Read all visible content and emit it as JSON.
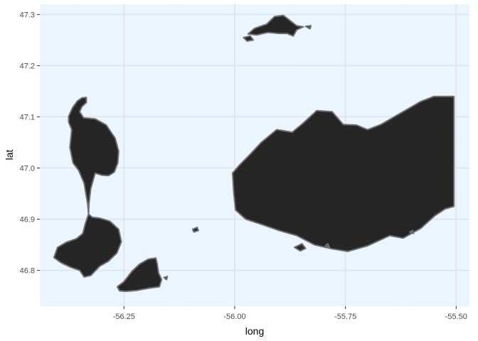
{
  "chart_data": {
    "type": "map",
    "xlabel": "long",
    "ylabel": "lat",
    "xlim": [
      -56.44,
      -55.47
    ],
    "ylim": [
      46.73,
      47.32
    ],
    "x_ticks": [
      {
        "value": -56.25,
        "label": "-56.25"
      },
      {
        "value": -56.0,
        "label": "-56.00"
      },
      {
        "value": -55.75,
        "label": "-55.75"
      },
      {
        "value": -55.5,
        "label": "-55.50"
      }
    ],
    "y_ticks": [
      {
        "value": 46.8,
        "label": "46.8"
      },
      {
        "value": 46.9,
        "label": "46.9"
      },
      {
        "value": 47.0,
        "label": "47.0"
      },
      {
        "value": 47.1,
        "label": "47.1"
      },
      {
        "value": 47.2,
        "label": "47.2"
      },
      {
        "value": 47.3,
        "label": "47.3"
      }
    ],
    "grid": true,
    "colors": {
      "panel_background": "#ebf5ff",
      "land_fill": "#262626",
      "land_outline": "#6e6e6e"
    },
    "landmasses": [
      {
        "id": "northwest-island",
        "points": [
          [
            -56.375,
            47.101
          ],
          [
            -56.366,
            47.118
          ],
          [
            -56.355,
            47.131
          ],
          [
            -56.345,
            47.137
          ],
          [
            -56.335,
            47.138
          ],
          [
            -56.335,
            47.128
          ],
          [
            -56.345,
            47.12
          ],
          [
            -56.35,
            47.11
          ],
          [
            -56.341,
            47.098
          ],
          [
            -56.315,
            47.096
          ],
          [
            -56.29,
            47.084
          ],
          [
            -56.27,
            47.058
          ],
          [
            -56.262,
            47.033
          ],
          [
            -56.264,
            47.01
          ],
          [
            -56.272,
            46.992
          ],
          [
            -56.285,
            46.985
          ],
          [
            -56.3,
            46.986
          ],
          [
            -56.315,
            46.99
          ],
          [
            -56.325,
            46.96
          ],
          [
            -56.329,
            46.93
          ],
          [
            -56.33,
            46.91
          ],
          [
            -56.332,
            46.93
          ],
          [
            -56.34,
            46.97
          ],
          [
            -56.352,
            46.995
          ],
          [
            -56.365,
            47.01
          ],
          [
            -56.372,
            47.04
          ],
          [
            -56.368,
            47.075
          ],
          [
            -56.375,
            47.09
          ]
        ]
      },
      {
        "id": "southwest-island",
        "points": [
          [
            -56.33,
            46.91
          ],
          [
            -56.322,
            46.904
          ],
          [
            -56.305,
            46.902
          ],
          [
            -56.282,
            46.896
          ],
          [
            -56.262,
            46.88
          ],
          [
            -56.256,
            46.856
          ],
          [
            -56.266,
            46.834
          ],
          [
            -56.285,
            46.818
          ],
          [
            -56.305,
            46.808
          ],
          [
            -56.325,
            46.79
          ],
          [
            -56.34,
            46.787
          ],
          [
            -56.35,
            46.8
          ],
          [
            -56.37,
            46.806
          ],
          [
            -56.392,
            46.815
          ],
          [
            -56.408,
            46.825
          ],
          [
            -56.4,
            46.845
          ],
          [
            -56.38,
            46.855
          ],
          [
            -56.357,
            46.862
          ],
          [
            -56.343,
            46.872
          ],
          [
            -56.337,
            46.892
          ]
        ]
      },
      {
        "id": "south-island",
        "points": [
          [
            -56.265,
            46.768
          ],
          [
            -56.25,
            46.778
          ],
          [
            -56.232,
            46.798
          ],
          [
            -56.215,
            46.812
          ],
          [
            -56.195,
            46.822
          ],
          [
            -56.178,
            46.824
          ],
          [
            -56.175,
            46.813
          ],
          [
            -56.172,
            46.795
          ],
          [
            -56.165,
            46.782
          ],
          [
            -56.17,
            46.768
          ],
          [
            -56.195,
            46.765
          ],
          [
            -56.22,
            46.761
          ],
          [
            -56.245,
            46.759
          ],
          [
            -56.26,
            46.76
          ]
        ]
      },
      {
        "id": "north-island",
        "points": [
          [
            -55.97,
            47.262
          ],
          [
            -55.955,
            47.273
          ],
          [
            -55.928,
            47.281
          ],
          [
            -55.91,
            47.296
          ],
          [
            -55.89,
            47.298
          ],
          [
            -55.872,
            47.286
          ],
          [
            -55.86,
            47.278
          ],
          [
            -55.845,
            47.276
          ],
          [
            -55.86,
            47.27
          ],
          [
            -55.868,
            47.258
          ],
          [
            -55.882,
            47.263
          ],
          [
            -55.9,
            47.263
          ],
          [
            -55.925,
            47.265
          ],
          [
            -55.95,
            47.26
          ]
        ]
      },
      {
        "id": "main-east-landmass",
        "points": [
          [
            -56.005,
            46.99
          ],
          [
            -55.99,
            47.005
          ],
          [
            -55.965,
            47.027
          ],
          [
            -55.94,
            47.05
          ],
          [
            -55.905,
            47.075
          ],
          [
            -55.87,
            47.07
          ],
          [
            -55.845,
            47.088
          ],
          [
            -55.815,
            47.112
          ],
          [
            -55.78,
            47.11
          ],
          [
            -55.755,
            47.085
          ],
          [
            -55.725,
            47.084
          ],
          [
            -55.7,
            47.075
          ],
          [
            -55.67,
            47.085
          ],
          [
            -55.64,
            47.1
          ],
          [
            -55.61,
            47.115
          ],
          [
            -55.58,
            47.13
          ],
          [
            -55.55,
            47.14
          ],
          [
            -55.505,
            47.14
          ],
          [
            -55.505,
            46.925
          ],
          [
            -55.525,
            46.92
          ],
          [
            -55.548,
            46.907
          ],
          [
            -55.58,
            46.882
          ],
          [
            -55.62,
            46.863
          ],
          [
            -55.65,
            46.868
          ],
          [
            -55.7,
            46.848
          ],
          [
            -55.745,
            46.837
          ],
          [
            -55.78,
            46.842
          ],
          [
            -55.82,
            46.85
          ],
          [
            -55.86,
            46.868
          ],
          [
            -55.9,
            46.878
          ],
          [
            -55.94,
            46.89
          ],
          [
            -55.975,
            46.9
          ],
          [
            -55.998,
            46.918
          ],
          [
            -56.002,
            46.95
          ]
        ]
      }
    ],
    "islets": [
      {
        "id": "islet-1",
        "points": [
          [
            -56.095,
            46.88
          ],
          [
            -56.085,
            46.884
          ],
          [
            -56.082,
            46.878
          ],
          [
            -56.092,
            46.875
          ]
        ]
      },
      {
        "id": "islet-2",
        "points": [
          [
            -55.865,
            46.845
          ],
          [
            -55.848,
            46.852
          ],
          [
            -55.84,
            46.843
          ],
          [
            -55.852,
            46.838
          ]
        ]
      },
      {
        "id": "islet-3",
        "points": [
          [
            -55.795,
            46.848
          ],
          [
            -55.79,
            46.852
          ],
          [
            -55.786,
            46.845
          ]
        ]
      },
      {
        "id": "islet-4",
        "points": [
          [
            -55.98,
            47.255
          ],
          [
            -55.965,
            47.258
          ],
          [
            -55.958,
            47.25
          ],
          [
            -55.972,
            47.248
          ]
        ]
      },
      {
        "id": "islet-5",
        "points": [
          [
            -55.84,
            47.277
          ],
          [
            -55.828,
            47.278
          ],
          [
            -55.83,
            47.272
          ]
        ]
      },
      {
        "id": "islet-6",
        "points": [
          [
            -55.605,
            46.875
          ],
          [
            -55.598,
            46.878
          ],
          [
            -55.596,
            46.872
          ]
        ]
      },
      {
        "id": "islet-7",
        "points": [
          [
            -56.16,
            46.786
          ],
          [
            -56.152,
            46.788
          ],
          [
            -56.154,
            46.782
          ]
        ]
      }
    ]
  }
}
